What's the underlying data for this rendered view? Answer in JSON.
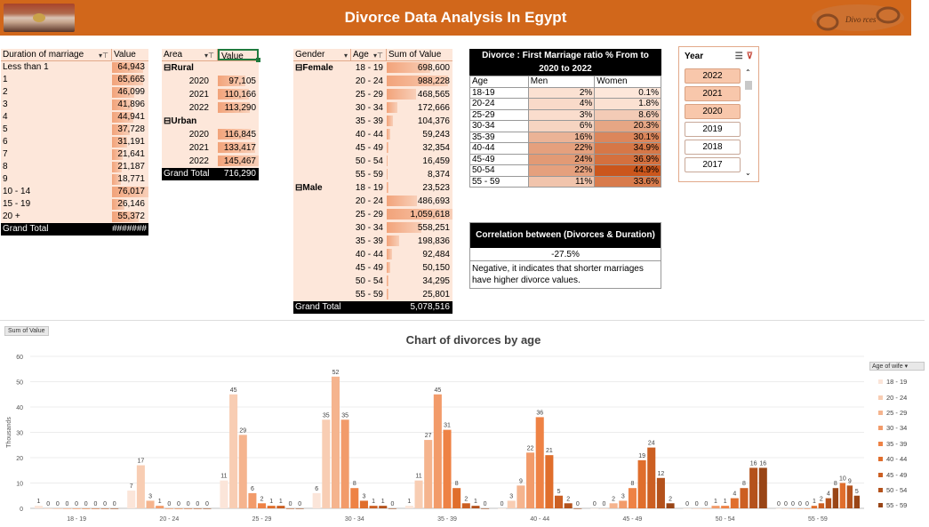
{
  "header": {
    "title": "Divorce Data Analysis In Egypt",
    "logo_text": "Divo rces"
  },
  "duration_pivot": {
    "col1": "Duration of marriage",
    "col2": "Value",
    "rows": [
      {
        "label": "Less than 1",
        "value": "64,943",
        "n": 64943
      },
      {
        "label": "1",
        "value": "65,665",
        "n": 65665
      },
      {
        "label": "2",
        "value": "46,099",
        "n": 46099
      },
      {
        "label": "3",
        "value": "41,896",
        "n": 41896
      },
      {
        "label": "4",
        "value": "44,941",
        "n": 44941
      },
      {
        "label": "5",
        "value": "37,728",
        "n": 37728
      },
      {
        "label": "6",
        "value": "31,191",
        "n": 31191
      },
      {
        "label": "7",
        "value": "21,641",
        "n": 21641
      },
      {
        "label": "8",
        "value": "21,187",
        "n": 21187
      },
      {
        "label": "9",
        "value": "18,771",
        "n": 18771
      },
      {
        "label": "10 - 14",
        "value": "76,017",
        "n": 76017
      },
      {
        "label": "15 - 19",
        "value": "26,146",
        "n": 26146
      },
      {
        "label": "20 +",
        "value": "55,372",
        "n": 55372
      }
    ],
    "grand_label": "Grand Total",
    "grand_value": "#######"
  },
  "area_pivot": {
    "col1": "Area",
    "col2": "Value",
    "groups": [
      {
        "name": "Rural",
        "rows": [
          {
            "year": "2020",
            "value": "97,105",
            "n": 97105
          },
          {
            "year": "2021",
            "value": "110,166",
            "n": 110166
          },
          {
            "year": "2022",
            "value": "113,290",
            "n": 113290
          }
        ]
      },
      {
        "name": "Urban",
        "rows": [
          {
            "year": "2020",
            "value": "116,845",
            "n": 116845
          },
          {
            "year": "2021",
            "value": "133,417",
            "n": 133417
          },
          {
            "year": "2022",
            "value": "145,467",
            "n": 145467
          }
        ]
      }
    ],
    "grand_label": "Grand Total",
    "grand_value": "716,290"
  },
  "gender_pivot": {
    "col1": "Gender",
    "col2": "Age",
    "col3": "Sum of Value",
    "groups": [
      {
        "name": "Female",
        "rows": [
          {
            "age": "18 - 19",
            "value": "698,600",
            "n": 698600
          },
          {
            "age": "20 - 24",
            "value": "988,228",
            "n": 988228
          },
          {
            "age": "25 - 29",
            "value": "468,565",
            "n": 468565
          },
          {
            "age": "30 - 34",
            "value": "172,666",
            "n": 172666
          },
          {
            "age": "35 - 39",
            "value": "104,376",
            "n": 104376
          },
          {
            "age": "40 - 44",
            "value": "59,243",
            "n": 59243
          },
          {
            "age": "45 - 49",
            "value": "32,354",
            "n": 32354
          },
          {
            "age": "50 - 54",
            "value": "16,459",
            "n": 16459
          },
          {
            "age": "55 - 59",
            "value": "8,374",
            "n": 8374
          }
        ]
      },
      {
        "name": "Male",
        "rows": [
          {
            "age": "18 - 19",
            "value": "23,523",
            "n": 23523
          },
          {
            "age": "20 - 24",
            "value": "486,693",
            "n": 486693
          },
          {
            "age": "25 - 29",
            "value": "1,059,618",
            "n": 1059618
          },
          {
            "age": "30 - 34",
            "value": "558,251",
            "n": 558251
          },
          {
            "age": "35 - 39",
            "value": "198,836",
            "n": 198836
          },
          {
            "age": "40 - 44",
            "value": "92,484",
            "n": 92484
          },
          {
            "age": "45 - 49",
            "value": "50,150",
            "n": 50150
          },
          {
            "age": "50 - 54",
            "value": "34,295",
            "n": 34295
          },
          {
            "age": "55 - 59",
            "value": "25,801",
            "n": 25801
          }
        ]
      }
    ],
    "grand_label": "Grand Total",
    "grand_value": "5,078,516"
  },
  "ratio_table": {
    "title": "Divorce : First Marriage ratio % From to 2020 to 2022",
    "headers": [
      "Age",
      "Men",
      "Women"
    ],
    "rows": [
      {
        "age": "18-19",
        "men": "2%",
        "women": "0.1%",
        "mv": 2,
        "wv": 0.1
      },
      {
        "age": "20-24",
        "men": "4%",
        "women": "1.8%",
        "mv": 4,
        "wv": 1.8
      },
      {
        "age": "25-29",
        "men": "3%",
        "women": "8.6%",
        "mv": 3,
        "wv": 8.6
      },
      {
        "age": "30-34",
        "men": "6%",
        "women": "20.3%",
        "mv": 6,
        "wv": 20.3
      },
      {
        "age": "35-39",
        "men": "16%",
        "women": "30.1%",
        "mv": 16,
        "wv": 30.1
      },
      {
        "age": "40-44",
        "men": "22%",
        "women": "34.9%",
        "mv": 22,
        "wv": 34.9
      },
      {
        "age": "45-49",
        "men": "24%",
        "women": "36.9%",
        "mv": 24,
        "wv": 36.9
      },
      {
        "age": "50-54",
        "men": "22%",
        "women": "44.9%",
        "mv": 22,
        "wv": 44.9
      },
      {
        "age": "55 - 59",
        "men": "11%",
        "women": "33.6%",
        "mv": 11,
        "wv": 33.6
      }
    ]
  },
  "correlation": {
    "title": "Correlation between (Divorces & Duration)",
    "value": "-27.5%",
    "note": "Negative, it indicates that shorter marriages have higher divorce values."
  },
  "slicer": {
    "title": "Year",
    "items": [
      {
        "label": "2022",
        "selected": true
      },
      {
        "label": "2021",
        "selected": true
      },
      {
        "label": "2020",
        "selected": true
      },
      {
        "label": "2019",
        "selected": false
      },
      {
        "label": "2018",
        "selected": false
      },
      {
        "label": "2017",
        "selected": false
      }
    ]
  },
  "chart_data": {
    "type": "bar",
    "title": "Chart of divorces by age",
    "field_button": "Sum of Value",
    "ylabel": "Thousands",
    "ylim": [
      0,
      60
    ],
    "yticks": [
      0,
      10,
      20,
      30,
      40,
      50,
      60
    ],
    "categories": [
      "18 - 19",
      "20 - 24",
      "25 - 29",
      "30 - 34",
      "35 - 39",
      "40 - 44",
      "45 - 49",
      "50 - 54",
      "55 - 59"
    ],
    "legend_title": "Age of wife",
    "series": [
      {
        "name": "18 - 19",
        "color": "#fbe5d9",
        "values": [
          1,
          7,
          11,
          6,
          1,
          0,
          0,
          0,
          0
        ]
      },
      {
        "name": "20 - 24",
        "color": "#f8cdb3",
        "values": [
          0,
          17,
          45,
          35,
          11,
          3,
          0,
          0,
          0
        ]
      },
      {
        "name": "25 - 29",
        "color": "#f5b48e",
        "values": [
          0,
          3,
          29,
          52,
          27,
          9,
          2,
          0,
          0
        ]
      },
      {
        "name": "30 - 34",
        "color": "#f29b6a",
        "values": [
          0,
          1,
          6,
          35,
          45,
          22,
          3,
          1,
          0
        ]
      },
      {
        "name": "35 - 39",
        "color": "#ee8245",
        "values": [
          0,
          0,
          2,
          8,
          31,
          36,
          8,
          1,
          0
        ]
      },
      {
        "name": "40 - 44",
        "color": "#e06e2c",
        "values": [
          0,
          0,
          1,
          3,
          8,
          21,
          19,
          4,
          1
        ]
      },
      {
        "name": "45 - 49",
        "color": "#cc5f22",
        "values": [
          0,
          0,
          1,
          1,
          2,
          5,
          24,
          8,
          2
        ]
      },
      {
        "name": "50 - 54",
        "color": "#b4521c",
        "values": [
          0,
          0,
          0,
          1,
          1,
          2,
          12,
          16,
          4
        ]
      },
      {
        "name": "55 - 59",
        "color": "#994516",
        "values": [
          0,
          0,
          0,
          0,
          0,
          0,
          2,
          16,
          8
        ]
      }
    ],
    "extra_bars": {
      "55 - 59": [
        10,
        9,
        5
      ]
    }
  }
}
